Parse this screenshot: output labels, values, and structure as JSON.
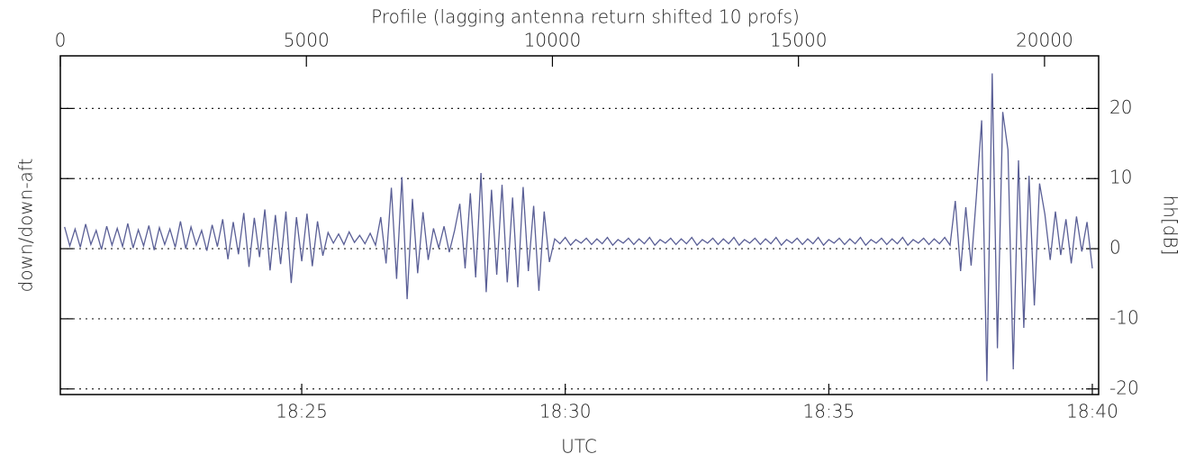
{
  "chart_data": {
    "type": "line",
    "title": "Profile (lagging antenna return shifted 10 profs)",
    "x_label": "UTC",
    "y_label": "down/down-aft",
    "y2_label": "hh[dB]",
    "xlim": [
      20.42,
      40.12
    ],
    "xticks": [
      {
        "value": 25,
        "label": "18:25"
      },
      {
        "value": 30,
        "label": "18:30"
      },
      {
        "value": 35,
        "label": "18:35"
      },
      {
        "value": 40,
        "label": "18:40"
      }
    ],
    "x2lim": [
      0,
      21100
    ],
    "x2ticks": [
      0,
      5000,
      10000,
      15000,
      20000
    ],
    "ylim": [
      -20.8,
      27.5
    ],
    "yticks": [
      -20,
      -10,
      0,
      10,
      20
    ],
    "grid": true,
    "series": [
      {
        "color": "#5a5f96",
        "x": [
          20.5,
          20.6,
          20.7,
          20.8,
          20.9,
          21.0,
          21.1,
          21.2,
          21.3,
          21.4,
          21.5,
          21.6,
          21.7,
          21.8,
          21.9,
          22.0,
          22.1,
          22.2,
          22.3,
          22.4,
          22.5,
          22.6,
          22.7,
          22.8,
          22.9,
          23.0,
          23.1,
          23.2,
          23.3,
          23.4,
          23.5,
          23.6,
          23.7,
          23.8,
          23.9,
          24.0,
          24.1,
          24.2,
          24.3,
          24.4,
          24.5,
          24.6,
          24.7,
          24.8,
          24.9,
          25.0,
          25.1,
          25.2,
          25.3,
          25.4,
          25.5,
          25.6,
          25.7,
          25.8,
          25.9,
          26.0,
          26.1,
          26.2,
          26.3,
          26.4,
          26.5,
          26.6,
          26.7,
          26.8,
          26.9,
          27.0,
          27.1,
          27.2,
          27.3,
          27.4,
          27.5,
          27.6,
          27.7,
          27.8,
          27.9,
          28.0,
          28.1,
          28.2,
          28.3,
          28.4,
          28.5,
          28.6,
          28.7,
          28.8,
          28.9,
          29.0,
          29.1,
          29.2,
          29.3,
          29.4,
          29.5,
          29.6,
          29.7,
          29.8,
          29.9,
          30.0,
          30.1,
          30.2,
          30.3,
          30.4,
          30.5,
          30.6,
          30.7,
          30.8,
          30.9,
          31.0,
          31.1,
          31.2,
          31.3,
          31.4,
          31.5,
          31.6,
          31.7,
          31.8,
          31.9,
          32.0,
          32.1,
          32.2,
          32.3,
          32.4,
          32.5,
          32.6,
          32.7,
          32.8,
          32.9,
          33.0,
          33.1,
          33.2,
          33.3,
          33.4,
          33.5,
          33.6,
          33.7,
          33.8,
          33.9,
          34.0,
          34.1,
          34.2,
          34.3,
          34.4,
          34.5,
          34.6,
          34.7,
          34.8,
          34.9,
          35.0,
          35.1,
          35.2,
          35.3,
          35.4,
          35.5,
          35.6,
          35.7,
          35.8,
          35.9,
          36.0,
          36.1,
          36.2,
          36.3,
          36.4,
          36.5,
          36.6,
          36.7,
          36.8,
          36.9,
          37.0,
          37.1,
          37.2,
          37.3,
          37.4,
          37.5,
          37.6,
          37.7,
          37.8,
          37.9,
          38.0,
          38.1,
          38.2,
          38.3,
          38.4,
          38.5,
          38.6,
          38.7,
          38.8,
          38.9,
          39.0,
          39.1,
          39.2,
          39.3,
          39.4,
          39.5,
          39.6,
          39.7,
          39.8,
          39.9,
          40.0
        ],
        "values": [
          3.1,
          0.4,
          2.8,
          0.2,
          3.5,
          0.6,
          2.6,
          -0.1,
          3.2,
          0.5,
          2.9,
          0.3,
          3.6,
          0.1,
          2.7,
          0.4,
          3.3,
          -0.2,
          3.0,
          0.6,
          2.8,
          0.2,
          3.9,
          0.0,
          3.1,
          0.5,
          2.6,
          -0.3,
          3.4,
          0.3,
          4.2,
          -1.5,
          3.8,
          -0.8,
          5.1,
          -2.6,
          4.4,
          -1.2,
          5.6,
          -3.1,
          4.8,
          -2.2,
          5.3,
          -4.9,
          4.5,
          -1.8,
          5.0,
          -2.5,
          3.9,
          -1.0,
          2.3,
          0.8,
          2.1,
          0.6,
          2.4,
          0.9,
          1.9,
          0.7,
          2.2,
          0.5,
          4.5,
          -2.1,
          8.7,
          -4.3,
          10.2,
          -7.2,
          7.1,
          -3.5,
          5.2,
          -1.6,
          2.9,
          0.1,
          3.2,
          -0.5,
          2.6,
          6.4,
          -2.8,
          7.9,
          -4.1,
          10.8,
          -6.2,
          8.4,
          -3.7,
          9.1,
          -4.8,
          7.3,
          -5.5,
          8.8,
          -3.2,
          6.1,
          -6.0,
          5.3,
          -1.9,
          1.4,
          0.7,
          1.6,
          0.5,
          1.3,
          0.8,
          1.5,
          0.6,
          1.4,
          0.7,
          1.6,
          0.5,
          1.3,
          0.8,
          1.5,
          0.6,
          1.4,
          0.7,
          1.6,
          0.5,
          1.3,
          0.8,
          1.5,
          0.6,
          1.4,
          0.7,
          1.6,
          0.5,
          1.3,
          0.8,
          1.5,
          0.6,
          1.4,
          0.7,
          1.6,
          0.5,
          1.3,
          0.8,
          1.5,
          0.6,
          1.4,
          0.7,
          1.6,
          0.5,
          1.3,
          0.8,
          1.5,
          0.6,
          1.4,
          0.7,
          1.6,
          0.5,
          1.3,
          0.8,
          1.5,
          0.6,
          1.4,
          0.7,
          1.6,
          0.5,
          1.3,
          0.8,
          1.5,
          0.6,
          1.4,
          0.7,
          1.6,
          0.5,
          1.3,
          0.8,
          1.5,
          0.6,
          1.4,
          0.7,
          1.6,
          0.5,
          6.8,
          -3.2,
          5.9,
          -2.4,
          7.4,
          18.3,
          -18.9,
          25.0,
          -14.2,
          19.5,
          14.1,
          -17.2,
          12.6,
          -11.3,
          10.4,
          -8.1,
          9.3,
          4.9,
          -1.6,
          5.3,
          -0.9,
          4.2,
          -2.1,
          4.6,
          -0.4,
          3.8,
          -2.8
        ]
      }
    ]
  }
}
